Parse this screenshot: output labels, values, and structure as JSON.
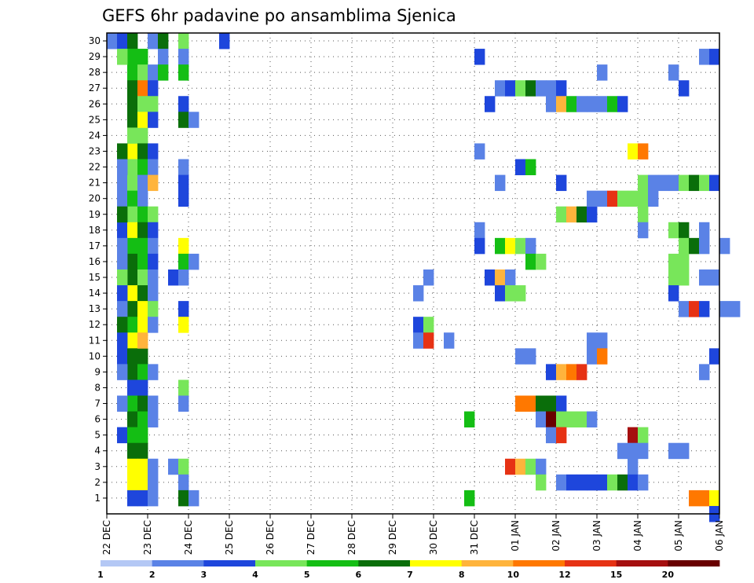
{
  "chart_data": {
    "type": "heatmap",
    "title": "GEFS 6hr padavine po ansamblima Sjenica",
    "x_labels": [
      "22 DEC",
      "23 DEC",
      "24 DEC",
      "25 DEC",
      "26 DEC",
      "27 DEC",
      "28 DEC",
      "29 DEC",
      "30 DEC",
      "31 DEC",
      "01 JAN",
      "02 JAN",
      "03 JAN",
      "04 JAN",
      "05 JAN",
      "06 JAN"
    ],
    "x_steps_per_label": 4,
    "y_labels": [
      "1",
      "2",
      "3",
      "4",
      "5",
      "6",
      "7",
      "8",
      "9",
      "10",
      "11",
      "12",
      "13",
      "14",
      "15",
      "16",
      "17",
      "18",
      "19",
      "20",
      "21",
      "22",
      "23",
      "24",
      "25",
      "26",
      "27",
      "28",
      "29",
      "30"
    ],
    "colorbar": {
      "ticks": [
        "1",
        "2",
        "3",
        "4",
        "5",
        "6",
        "7",
        "8",
        "10",
        "12",
        "15",
        "20"
      ],
      "colors": [
        "#b4c8f5",
        "#5a82e6",
        "#1e46dc",
        "#78e65a",
        "#14be14",
        "#0a6e0a",
        "#ffff00",
        "#ffb43c",
        "#ff7800",
        "#e63214",
        "#a50f0f",
        "#690000"
      ]
    },
    "cells": [
      [
        0,
        30,
        1
      ],
      [
        1,
        30,
        2
      ],
      [
        2,
        30,
        5
      ],
      [
        4,
        30,
        1
      ],
      [
        5,
        30,
        5
      ],
      [
        7,
        30,
        3
      ],
      [
        11,
        30,
        2
      ],
      [
        2,
        29,
        4
      ],
      [
        2,
        28,
        4
      ],
      [
        2,
        27,
        5
      ],
      [
        2,
        26,
        5
      ],
      [
        2,
        25,
        5
      ],
      [
        3,
        24,
        3
      ],
      [
        2,
        23,
        6
      ],
      [
        2,
        22,
        3
      ],
      [
        1,
        21,
        1
      ],
      [
        2,
        21,
        3
      ],
      [
        1,
        20,
        1
      ],
      [
        2,
        20,
        4
      ],
      [
        2,
        19,
        3
      ],
      [
        1,
        18,
        2
      ],
      [
        2,
        18,
        6
      ],
      [
        2,
        17,
        4
      ],
      [
        2,
        16,
        5
      ],
      [
        2,
        15,
        5
      ],
      [
        2,
        14,
        6
      ],
      [
        2,
        13,
        5
      ],
      [
        2,
        12,
        4
      ],
      [
        2,
        11,
        6
      ],
      [
        1,
        10,
        2
      ],
      [
        2,
        10,
        5
      ],
      [
        3,
        10,
        5
      ],
      [
        2,
        9,
        5
      ],
      [
        2,
        8,
        2
      ],
      [
        2,
        7,
        4
      ],
      [
        2,
        6,
        5
      ],
      [
        1,
        5,
        2
      ],
      [
        2,
        5,
        4
      ],
      [
        3,
        5,
        4
      ],
      [
        2,
        4,
        5
      ],
      [
        3,
        4,
        5
      ],
      [
        2,
        3,
        6
      ],
      [
        2,
        2,
        6
      ],
      [
        2,
        1,
        2
      ],
      [
        1,
        29,
        3
      ],
      [
        3,
        29,
        4
      ],
      [
        5,
        29,
        1
      ],
      [
        3,
        28,
        3
      ],
      [
        4,
        28,
        1
      ],
      [
        5,
        28,
        4
      ],
      [
        3,
        27,
        8
      ],
      [
        4,
        27,
        2
      ],
      [
        3,
        26,
        3
      ],
      [
        4,
        26,
        3
      ],
      [
        3,
        25,
        6
      ],
      [
        4,
        25,
        2
      ],
      [
        2,
        24,
        3
      ],
      [
        1,
        23,
        5
      ],
      [
        3,
        23,
        5
      ],
      [
        4,
        23,
        2
      ],
      [
        1,
        22,
        1
      ],
      [
        3,
        22,
        4
      ],
      [
        4,
        22,
        1
      ],
      [
        3,
        21,
        1
      ],
      [
        4,
        21,
        7
      ],
      [
        3,
        20,
        1
      ],
      [
        1,
        19,
        5
      ],
      [
        3,
        19,
        4
      ],
      [
        4,
        19,
        3
      ],
      [
        3,
        18,
        5
      ],
      [
        4,
        18,
        2
      ],
      [
        1,
        17,
        1
      ],
      [
        3,
        17,
        4
      ],
      [
        4,
        17,
        1
      ],
      [
        1,
        16,
        1
      ],
      [
        3,
        16,
        4
      ],
      [
        4,
        16,
        2
      ],
      [
        1,
        15,
        3
      ],
      [
        3,
        15,
        3
      ],
      [
        4,
        15,
        1
      ],
      [
        1,
        14,
        2
      ],
      [
        3,
        14,
        5
      ],
      [
        4,
        14,
        1
      ],
      [
        1,
        13,
        1
      ],
      [
        3,
        13,
        6
      ],
      [
        4,
        13,
        3
      ],
      [
        1,
        12,
        5
      ],
      [
        3,
        12,
        6
      ],
      [
        4,
        12,
        1
      ],
      [
        1,
        11,
        2
      ],
      [
        3,
        11,
        7
      ],
      [
        1,
        9,
        1
      ],
      [
        3,
        9,
        4
      ],
      [
        4,
        9,
        1
      ],
      [
        3,
        8,
        2
      ],
      [
        1,
        7,
        1
      ],
      [
        3,
        7,
        5
      ],
      [
        4,
        7,
        1
      ],
      [
        3,
        6,
        4
      ],
      [
        4,
        6,
        1
      ],
      [
        3,
        3,
        6
      ],
      [
        4,
        3,
        1
      ],
      [
        3,
        2,
        6
      ],
      [
        4,
        2,
        1
      ],
      [
        3,
        1,
        2
      ],
      [
        4,
        1,
        1
      ],
      [
        7,
        29,
        1
      ],
      [
        7,
        28,
        4
      ],
      [
        7,
        26,
        2
      ],
      [
        7,
        25,
        5
      ],
      [
        8,
        25,
        1
      ],
      [
        7,
        22,
        1
      ],
      [
        7,
        21,
        2
      ],
      [
        7,
        20,
        2
      ],
      [
        7,
        17,
        6
      ],
      [
        7,
        16,
        4
      ],
      [
        8,
        16,
        1
      ],
      [
        6,
        15,
        2
      ],
      [
        7,
        15,
        1
      ],
      [
        7,
        13,
        2
      ],
      [
        7,
        12,
        6
      ],
      [
        7,
        8,
        3
      ],
      [
        7,
        7,
        1
      ],
      [
        6,
        3,
        1
      ],
      [
        7,
        3,
        3
      ],
      [
        7,
        2,
        1
      ],
      [
        7,
        1,
        5
      ],
      [
        8,
        1,
        1
      ],
      [
        30,
        14,
        1
      ],
      [
        31,
        15,
        1
      ],
      [
        30,
        12,
        2
      ],
      [
        31,
        12,
        3
      ],
      [
        30,
        11,
        1
      ],
      [
        31,
        11,
        9
      ],
      [
        33,
        11,
        1
      ],
      [
        36,
        29,
        2
      ],
      [
        36,
        23,
        1
      ],
      [
        36,
        18,
        1
      ],
      [
        36,
        17,
        2
      ],
      [
        35,
        6,
        4
      ],
      [
        35,
        1,
        4
      ],
      [
        38,
        27,
        1
      ],
      [
        39,
        27,
        2
      ],
      [
        40,
        27,
        3
      ],
      [
        41,
        27,
        5
      ],
      [
        42,
        27,
        1
      ],
      [
        43,
        27,
        1
      ],
      [
        44,
        27,
        2
      ],
      [
        37,
        26,
        2
      ],
      [
        43,
        26,
        1
      ],
      [
        44,
        26,
        7
      ],
      [
        45,
        26,
        4
      ],
      [
        46,
        26,
        1
      ],
      [
        47,
        26,
        1
      ],
      [
        48,
        26,
        1
      ],
      [
        49,
        26,
        4
      ],
      [
        50,
        26,
        2
      ],
      [
        40,
        22,
        2
      ],
      [
        41,
        22,
        4
      ],
      [
        38,
        21,
        1
      ],
      [
        44,
        21,
        2
      ],
      [
        38,
        17,
        4
      ],
      [
        39,
        17,
        6
      ],
      [
        40,
        17,
        3
      ],
      [
        41,
        17,
        1
      ],
      [
        41,
        16,
        4
      ],
      [
        42,
        16,
        3
      ],
      [
        37,
        15,
        2
      ],
      [
        38,
        15,
        7
      ],
      [
        39,
        15,
        1
      ],
      [
        38,
        14,
        2
      ],
      [
        39,
        14,
        3
      ],
      [
        40,
        14,
        3
      ],
      [
        44,
        19,
        3
      ],
      [
        45,
        19,
        7
      ],
      [
        46,
        19,
        5
      ],
      [
        47,
        19,
        2
      ],
      [
        40,
        10,
        1
      ],
      [
        41,
        10,
        1
      ],
      [
        43,
        9,
        2
      ],
      [
        44,
        9,
        7
      ],
      [
        45,
        9,
        8
      ],
      [
        46,
        9,
        9
      ],
      [
        40,
        7,
        8
      ],
      [
        41,
        7,
        8
      ],
      [
        42,
        7,
        5
      ],
      [
        43,
        7,
        5
      ],
      [
        44,
        7,
        2
      ],
      [
        42,
        6,
        1
      ],
      [
        43,
        6,
        11
      ],
      [
        44,
        6,
        3
      ],
      [
        45,
        6,
        3
      ],
      [
        46,
        6,
        3
      ],
      [
        47,
        6,
        1
      ],
      [
        43,
        5,
        1
      ],
      [
        44,
        5,
        9
      ],
      [
        39,
        3,
        9
      ],
      [
        40,
        3,
        7
      ],
      [
        41,
        3,
        3
      ],
      [
        42,
        3,
        1
      ],
      [
        42,
        2,
        3
      ],
      [
        48,
        28,
        1
      ],
      [
        47,
        20,
        1
      ],
      [
        48,
        20,
        1
      ],
      [
        49,
        20,
        9
      ],
      [
        50,
        20,
        3
      ],
      [
        51,
        20,
        3
      ],
      [
        52,
        20,
        3
      ],
      [
        53,
        20,
        1
      ],
      [
        52,
        21,
        3
      ],
      [
        53,
        21,
        1
      ],
      [
        54,
        21,
        1
      ],
      [
        55,
        21,
        1
      ],
      [
        56,
        21,
        3
      ],
      [
        57,
        21,
        5
      ],
      [
        58,
        21,
        3
      ],
      [
        59,
        21,
        2
      ],
      [
        52,
        19,
        3
      ],
      [
        52,
        18,
        1
      ],
      [
        47,
        11,
        1
      ],
      [
        48,
        11,
        1
      ],
      [
        47,
        10,
        1
      ],
      [
        48,
        10,
        8
      ],
      [
        51,
        23,
        6
      ],
      [
        52,
        23,
        8
      ],
      [
        51,
        5,
        10
      ],
      [
        52,
        5,
        3
      ],
      [
        50,
        4,
        1
      ],
      [
        51,
        4,
        1
      ],
      [
        52,
        4,
        1
      ],
      [
        51,
        3,
        1
      ],
      [
        44,
        2,
        1
      ],
      [
        45,
        2,
        2
      ],
      [
        46,
        2,
        2
      ],
      [
        47,
        2,
        2
      ],
      [
        48,
        2,
        2
      ],
      [
        49,
        2,
        3
      ],
      [
        50,
        2,
        5
      ],
      [
        51,
        2,
        2
      ],
      [
        52,
        2,
        1
      ],
      [
        55,
        28,
        1
      ],
      [
        58,
        29,
        1
      ],
      [
        59,
        29,
        2
      ],
      [
        56,
        27,
        2
      ],
      [
        55,
        18,
        3
      ],
      [
        56,
        18,
        5
      ],
      [
        58,
        18,
        1
      ],
      [
        56,
        17,
        3
      ],
      [
        57,
        17,
        5
      ],
      [
        58,
        17,
        1
      ],
      [
        60,
        17,
        1
      ],
      [
        55,
        16,
        3
      ],
      [
        56,
        16,
        3
      ],
      [
        55,
        15,
        3
      ],
      [
        56,
        15,
        3
      ],
      [
        58,
        15,
        1
      ],
      [
        59,
        15,
        1
      ],
      [
        55,
        14,
        2
      ],
      [
        56,
        13,
        1
      ],
      [
        57,
        13,
        9
      ],
      [
        58,
        13,
        2
      ],
      [
        60,
        13,
        1
      ],
      [
        61,
        13,
        1
      ],
      [
        59,
        10,
        2
      ],
      [
        58,
        9,
        1
      ],
      [
        55,
        4,
        1
      ],
      [
        56,
        4,
        1
      ],
      [
        57,
        1,
        8
      ],
      [
        58,
        1,
        8
      ],
      [
        59,
        1,
        6
      ],
      [
        59,
        0,
        2
      ]
    ]
  }
}
